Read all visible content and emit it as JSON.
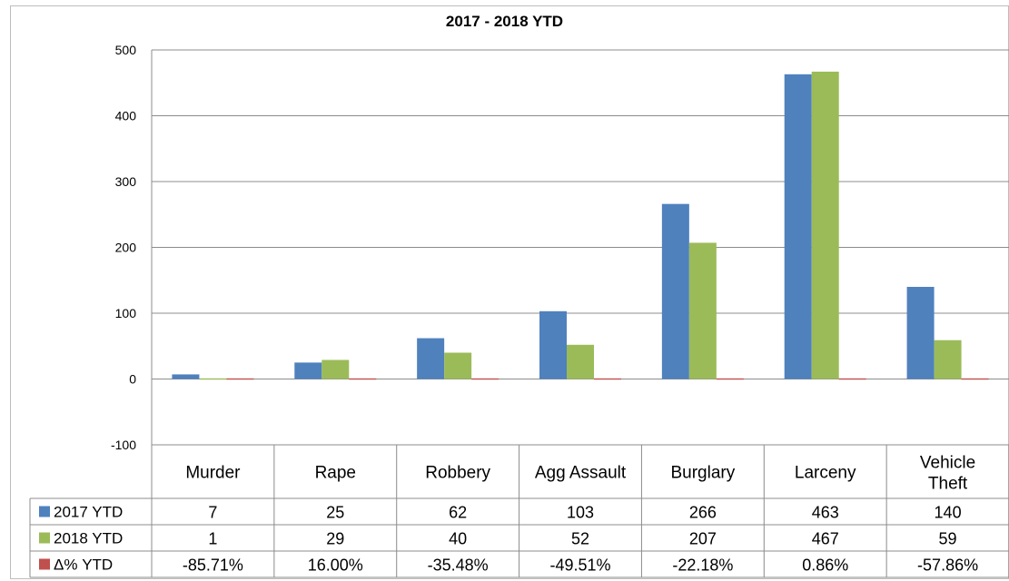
{
  "chart_data": {
    "type": "bar",
    "title": "2017 - 2018 YTD",
    "categories": [
      "Murder",
      "Rape",
      "Robbery",
      "Agg Assault",
      "Burglary",
      "Larceny",
      "Vehicle Theft"
    ],
    "series": [
      {
        "name": "2017 YTD",
        "color": "#4f81bd",
        "values": [
          7,
          25,
          62,
          103,
          266,
          463,
          140
        ]
      },
      {
        "name": "2018 YTD",
        "color": "#9bbb59",
        "values": [
          1,
          29,
          40,
          52,
          207,
          467,
          59
        ]
      },
      {
        "name": "Δ% YTD",
        "color": "#c0504d",
        "values": [
          -0.8571,
          0.16,
          -0.3548,
          -0.4951,
          -0.2218,
          0.0086,
          -0.5786
        ]
      }
    ],
    "table_rows": [
      [
        "7",
        "25",
        "62",
        "103",
        "266",
        "463",
        "140"
      ],
      [
        "1",
        "29",
        "40",
        "52",
        "207",
        "467",
        "59"
      ],
      [
        "-85.71%",
        "16.00%",
        "-35.48%",
        "-49.51%",
        "-22.18%",
        "0.86%",
        "-57.86%"
      ]
    ],
    "ylim": [
      -100,
      500
    ],
    "yticks": [
      "-100",
      "0",
      "100",
      "200",
      "300",
      "400",
      "500"
    ],
    "grid": true,
    "legend": "data-table"
  }
}
